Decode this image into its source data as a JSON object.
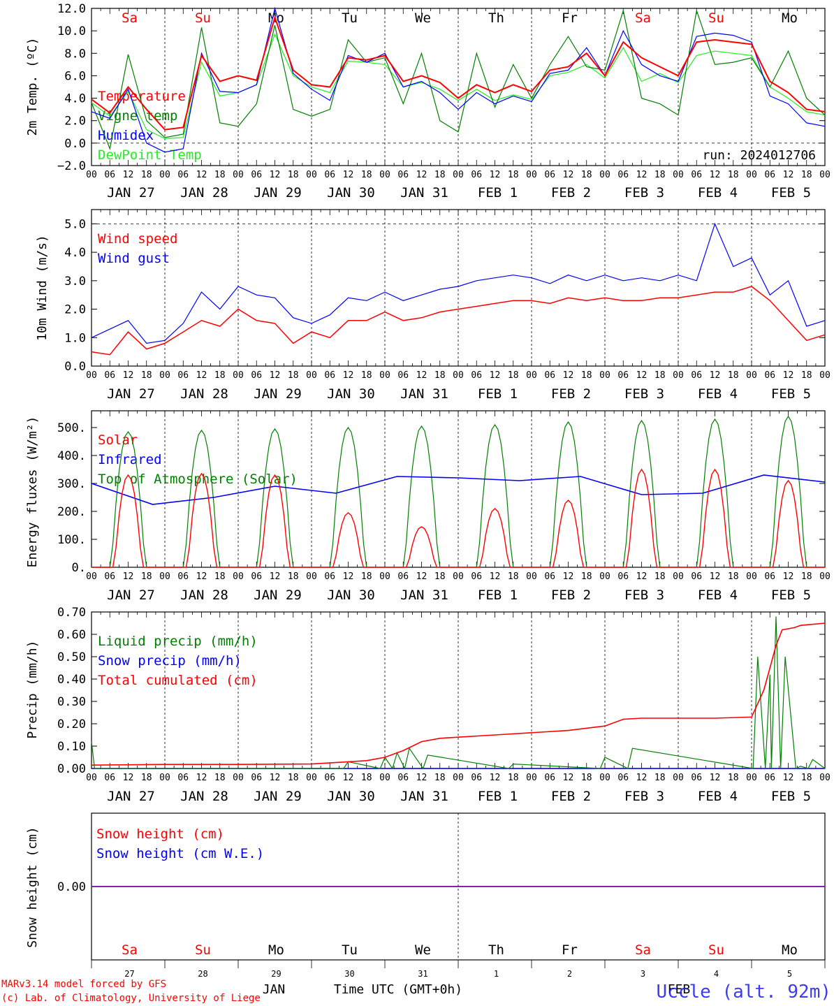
{
  "x_axis": {
    "hour_ticks": [
      "00",
      "06",
      "12",
      "18"
    ],
    "dates": [
      "JAN 27",
      "JAN 28",
      "JAN 29",
      "JAN 30",
      "JAN 31",
      "FEB  1",
      "FEB  2",
      "FEB  3",
      "FEB  4",
      "FEB  5"
    ],
    "end_tick": "00"
  },
  "weekdays": [
    {
      "label": "Sa",
      "color": "#ff0000"
    },
    {
      "label": "Su",
      "color": "#ff0000"
    },
    {
      "label": "Mo",
      "color": "#000000"
    },
    {
      "label": "Tu",
      "color": "#000000"
    },
    {
      "label": "We",
      "color": "#000000"
    },
    {
      "label": "Th",
      "color": "#000000"
    },
    {
      "label": "Fr",
      "color": "#000000"
    },
    {
      "label": "Sa",
      "color": "#ff0000"
    },
    {
      "label": "Su",
      "color": "#ff0000"
    },
    {
      "label": "Mo",
      "color": "#000000"
    }
  ],
  "colors": {
    "red": "#ff0000",
    "blue": "#0000ff",
    "green": "#008000",
    "lime": "#22ee22",
    "purple": "#7700aa"
  },
  "footer": {
    "model": "MARv3.14 model forced by GFS",
    "lab": "(c) Lab. of Climatology, University of Liege",
    "month_jan": "JAN",
    "month_feb": "FEB",
    "xaxis_title": "Time UTC (GMT+0h)",
    "station": "Uccle (alt. 92m)",
    "day_numbers": [
      "27",
      "28",
      "29",
      "30",
      "31",
      "1",
      "2",
      "3",
      "4",
      "5"
    ]
  },
  "chart_data": [
    {
      "type": "line",
      "ylabel": "2m Temp. (ºC)",
      "ylim": [
        -2,
        12
      ],
      "yticks": [
        "12.0",
        "10.0",
        "8.0",
        "6.0",
        "4.0",
        "2.0",
        "0.0",
        "−2.0"
      ],
      "yticks_values": [
        12,
        10,
        8,
        6,
        4,
        2,
        0,
        -2
      ],
      "annotation": "run: 2024012706",
      "x_hours": [
        0,
        6,
        12,
        18,
        24,
        30,
        36,
        42,
        48,
        54,
        60,
        66,
        72,
        78,
        84,
        90,
        96,
        102,
        108,
        114,
        120,
        126,
        132,
        138,
        144,
        150,
        156,
        162,
        168,
        174,
        180,
        186,
        192,
        198,
        204,
        210,
        216,
        222,
        228,
        234,
        240
      ],
      "series": [
        {
          "name": "Temperature",
          "color": "red",
          "values": [
            3.9,
            2.7,
            5.0,
            3.0,
            1.2,
            1.4,
            7.8,
            5.5,
            6.0,
            5.6,
            11.2,
            6.5,
            5.2,
            5.0,
            7.6,
            7.4,
            7.8,
            5.5,
            6.0,
            5.4,
            4.0,
            5.2,
            4.5,
            5.2,
            4.6,
            6.5,
            6.8,
            8.0,
            6.0,
            9.0,
            7.6,
            6.8,
            6.0,
            9.0,
            9.2,
            9.0,
            8.8,
            5.5,
            4.5,
            3.0,
            2.8
          ]
        },
        {
          "name": "Vigne temp",
          "color": "green",
          "values": [
            3.6,
            -0.5,
            7.9,
            2.0,
            0.5,
            0.8,
            10.3,
            1.8,
            1.5,
            3.5,
            10.5,
            3.0,
            2.4,
            3.0,
            9.2,
            7.2,
            7.6,
            3.5,
            8.0,
            2.0,
            1.0,
            8.0,
            3.2,
            7.0,
            4.0,
            7.0,
            9.5,
            6.8,
            6.5,
            11.8,
            4.0,
            3.5,
            2.5,
            11.8,
            7.0,
            7.2,
            7.6,
            5.0,
            8.2,
            4.0,
            2.5
          ]
        },
        {
          "name": "Humidex",
          "color": "blue",
          "values": [
            2.8,
            2.2,
            4.8,
            0.0,
            -0.8,
            -0.5,
            8.0,
            4.6,
            4.5,
            5.2,
            12.0,
            6.2,
            4.8,
            3.8,
            7.8,
            7.2,
            8.0,
            5.0,
            5.5,
            4.5,
            3.0,
            4.5,
            3.5,
            4.2,
            3.7,
            6.2,
            6.5,
            8.5,
            6.0,
            10.0,
            7.0,
            6.0,
            5.5,
            9.5,
            9.8,
            9.6,
            9.0,
            4.2,
            3.5,
            1.8,
            1.5
          ]
        },
        {
          "name": "DewPoint Temp",
          "color": "lime",
          "values": [
            3.6,
            2.4,
            4.6,
            1.2,
            0.4,
            0.5,
            7.2,
            4.2,
            4.5,
            5.2,
            9.7,
            6.0,
            5.0,
            4.5,
            7.3,
            7.2,
            7.0,
            5.0,
            5.4,
            4.8,
            3.8,
            4.8,
            3.8,
            4.3,
            3.9,
            6.0,
            6.3,
            7.0,
            5.8,
            8.5,
            5.5,
            6.2,
            5.4,
            7.8,
            8.2,
            8.0,
            7.8,
            5.0,
            4.0,
            2.8,
            2.5
          ]
        }
      ]
    },
    {
      "type": "line",
      "ylabel": "10m Wind (m/s)",
      "ylim": [
        0,
        5.5
      ],
      "yticks": [
        "5.0",
        "4.0",
        "3.0",
        "2.0",
        "1.0",
        "0.0"
      ],
      "yticks_values": [
        5,
        4,
        3,
        2,
        1,
        0
      ],
      "x_hours": [
        0,
        6,
        12,
        18,
        24,
        30,
        36,
        42,
        48,
        54,
        60,
        66,
        72,
        78,
        84,
        90,
        96,
        102,
        108,
        114,
        120,
        126,
        132,
        138,
        144,
        150,
        156,
        162,
        168,
        174,
        180,
        186,
        192,
        198,
        204,
        210,
        216,
        222,
        228,
        234,
        240
      ],
      "series": [
        {
          "name": "Wind speed",
          "color": "red",
          "values": [
            0.5,
            0.4,
            1.2,
            0.6,
            0.8,
            1.2,
            1.6,
            1.4,
            2.0,
            1.6,
            1.5,
            0.8,
            1.2,
            1.0,
            1.6,
            1.6,
            1.9,
            1.6,
            1.7,
            1.9,
            2.0,
            2.1,
            2.2,
            2.3,
            2.3,
            2.2,
            2.4,
            2.3,
            2.4,
            2.3,
            2.3,
            2.4,
            2.4,
            2.5,
            2.6,
            2.6,
            2.8,
            2.3,
            1.6,
            0.9,
            1.1
          ]
        },
        {
          "name": "Wind gust",
          "color": "blue",
          "values": [
            1.0,
            1.3,
            1.6,
            0.8,
            0.9,
            1.5,
            2.6,
            2.0,
            2.8,
            2.5,
            2.4,
            1.7,
            1.5,
            1.8,
            2.4,
            2.3,
            2.6,
            2.3,
            2.5,
            2.7,
            2.8,
            3.0,
            3.1,
            3.2,
            3.1,
            2.9,
            3.2,
            3.0,
            3.2,
            3.0,
            3.1,
            3.0,
            3.2,
            3.0,
            5.0,
            3.5,
            3.8,
            2.5,
            3.0,
            1.4,
            1.6
          ]
        }
      ]
    },
    {
      "type": "line",
      "ylabel": "Energy fluxes (W/m²)",
      "ylim": [
        0,
        560
      ],
      "yticks": [
        "500.",
        "400.",
        "300.",
        "200.",
        "100.",
        "0."
      ],
      "yticks_values": [
        500,
        400,
        300,
        200,
        100,
        0
      ],
      "days_peaks": {
        "toa": [
          485,
          490,
          495,
          500,
          505,
          510,
          520,
          525,
          530,
          540
        ],
        "solar": [
          330,
          335,
          330,
          195,
          145,
          210,
          240,
          350,
          350,
          310
        ],
        "infrared_level": [
          300,
          225,
          250,
          290,
          265,
          325,
          320,
          310,
          325,
          260,
          265,
          330,
          305
        ]
      },
      "series": [
        {
          "name": "Solar",
          "color": "red"
        },
        {
          "name": "Infrared",
          "color": "blue"
        },
        {
          "name": "Top of Atmosphere (Solar)",
          "color": "green"
        }
      ]
    },
    {
      "type": "line",
      "ylabel": "Precip (mm/h)",
      "ylim": [
        0,
        0.7
      ],
      "yticks": [
        "0.70",
        "0.60",
        "0.50",
        "0.40",
        "0.30",
        "0.20",
        "0.10",
        "0.00"
      ],
      "yticks_values": [
        0.7,
        0.6,
        0.5,
        0.4,
        0.3,
        0.2,
        0.1,
        0
      ],
      "series": [
        {
          "name": "Liquid precip (mm/h)",
          "color": "green"
        },
        {
          "name": "Snow precip (mm/h)",
          "color": "blue"
        },
        {
          "name": "Total cumulated (cm)",
          "color": "red",
          "x_hours": [
            0,
            24,
            48,
            72,
            84,
            90,
            96,
            102,
            108,
            114,
            120,
            132,
            144,
            156,
            168,
            174,
            180,
            192,
            204,
            216,
            220,
            222,
            224,
            226,
            228,
            230,
            232,
            240
          ],
          "values": [
            0.015,
            0.018,
            0.018,
            0.02,
            0.03,
            0.035,
            0.05,
            0.08,
            0.12,
            0.135,
            0.14,
            0.15,
            0.16,
            0.17,
            0.19,
            0.22,
            0.225,
            0.225,
            0.225,
            0.23,
            0.35,
            0.45,
            0.55,
            0.62,
            0.625,
            0.63,
            0.64,
            0.65
          ]
        }
      ],
      "liquid_spikes": [
        {
          "h": 0,
          "v": 0.12
        },
        {
          "h": 1,
          "v": 0.0
        },
        {
          "h": 84,
          "v": 0.03
        },
        {
          "h": 96,
          "v": 0.05
        },
        {
          "h": 100,
          "v": 0.07
        },
        {
          "h": 104,
          "v": 0.09
        },
        {
          "h": 110,
          "v": 0.06
        },
        {
          "h": 138,
          "v": 0.02
        },
        {
          "h": 168,
          "v": 0.05
        },
        {
          "h": 177,
          "v": 0.09
        },
        {
          "h": 218,
          "v": 0.5
        },
        {
          "h": 222,
          "v": 0.42
        },
        {
          "h": 224,
          "v": 0.68
        },
        {
          "h": 227,
          "v": 0.5
        },
        {
          "h": 232,
          "v": 0.01
        },
        {
          "h": 236,
          "v": 0.04
        }
      ]
    },
    {
      "type": "line",
      "ylabel": "Snow height (cm)",
      "yticks": [
        "0.00"
      ],
      "yticks_values": [
        0
      ],
      "series": [
        {
          "name": "Snow height (cm)",
          "color": "red",
          "values": [
            0,
            0
          ]
        },
        {
          "name": "Snow height (cm W.E.)",
          "color": "blue",
          "values": [
            0,
            0
          ]
        }
      ]
    }
  ]
}
